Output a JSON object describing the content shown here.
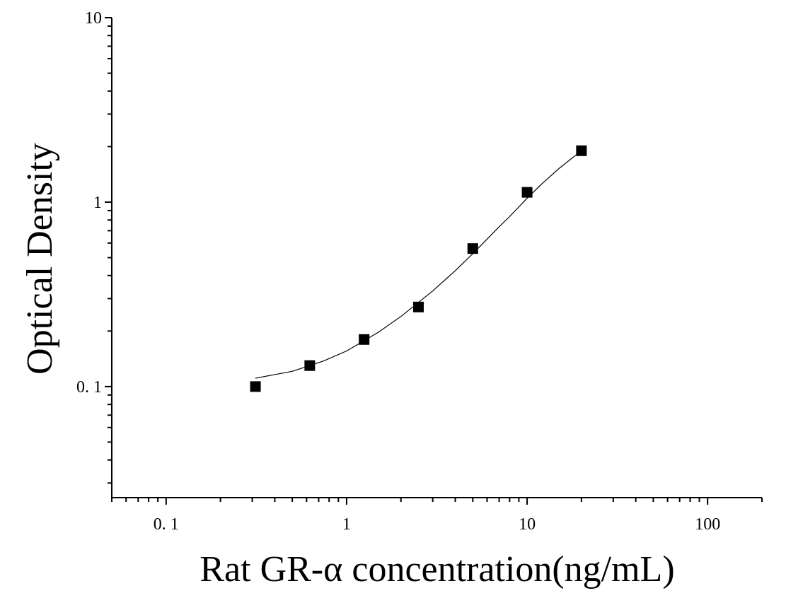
{
  "chart_data": {
    "type": "scatter",
    "x_scale": "log",
    "y_scale": "log",
    "xlabel": "Rat GR-α concentration(ng/mL)",
    "ylabel": "Optical Density",
    "xlim": [
      0.05,
      200
    ],
    "ylim": [
      0.025,
      10
    ],
    "x_tick_labels": [
      {
        "value": 0.1,
        "label": "0. 1"
      },
      {
        "value": 1,
        "label": "1"
      },
      {
        "value": 10,
        "label": "10"
      },
      {
        "value": 100,
        "label": "100"
      }
    ],
    "y_tick_labels": [
      {
        "value": 0.1,
        "label": "0. 1"
      },
      {
        "value": 1,
        "label": "1"
      },
      {
        "value": 10,
        "label": "10"
      }
    ],
    "points": {
      "x": [
        0.3125,
        0.625,
        1.25,
        2.5,
        5,
        10,
        20
      ],
      "y": [
        0.1,
        0.13,
        0.18,
        0.27,
        0.56,
        1.13,
        1.9
      ]
    },
    "fit_curve": {
      "x": [
        0.3125,
        0.5,
        0.75,
        1,
        1.5,
        2,
        3,
        4,
        5,
        6,
        7,
        8,
        10,
        12,
        15,
        20
      ],
      "y": [
        0.111,
        0.121,
        0.138,
        0.156,
        0.197,
        0.24,
        0.33,
        0.425,
        0.525,
        0.63,
        0.735,
        0.835,
        1.05,
        1.25,
        1.52,
        1.9
      ]
    },
    "grid": false,
    "legend": "none",
    "colors": {
      "marker": "#000000",
      "curve": "#000000",
      "axis": "#000000"
    }
  }
}
